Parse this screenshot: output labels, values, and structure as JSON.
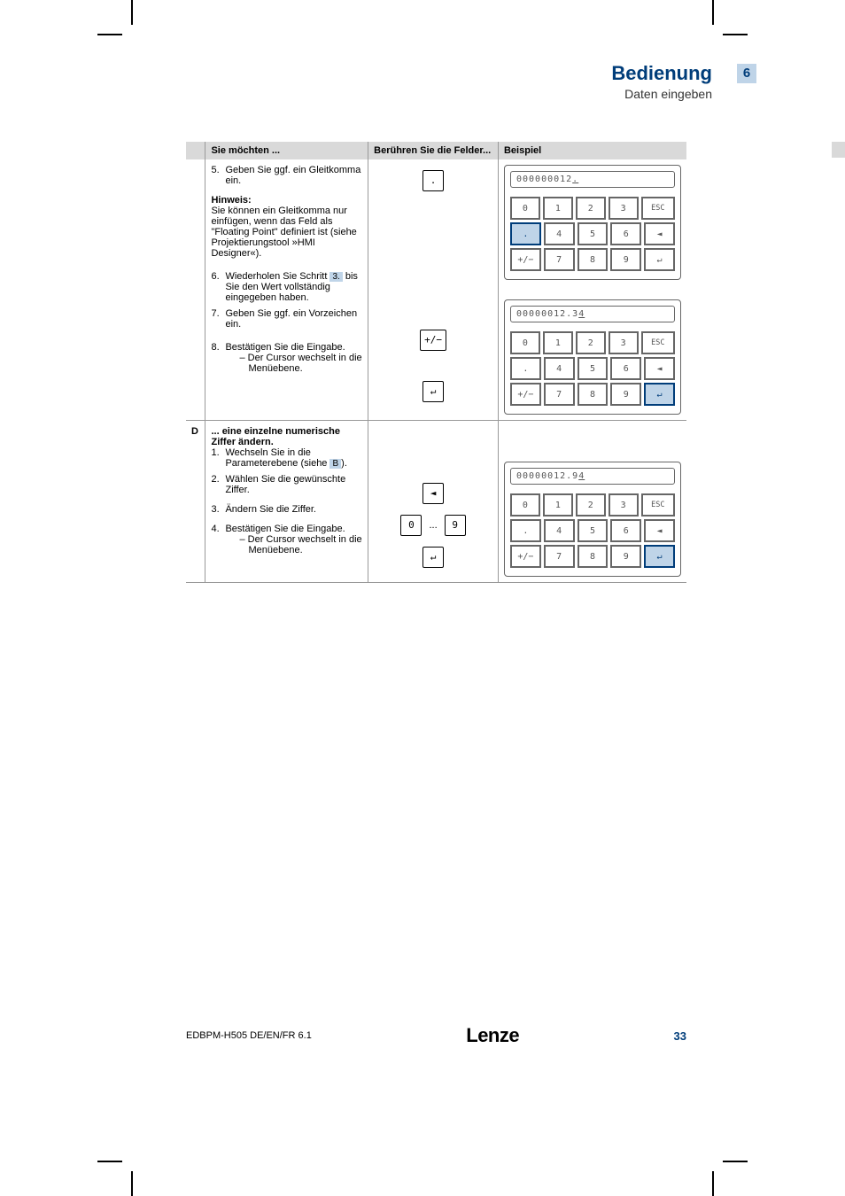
{
  "header": {
    "title": "Bedienung",
    "subtitle": "Daten eingeben",
    "chapter": "6"
  },
  "table": {
    "headers": {
      "want": "Sie möchten ...",
      "touch": "Berühren Sie die Felder...",
      "example": "Beispiel"
    },
    "rowC": {
      "step5": {
        "num": "5.",
        "text": "Geben Sie ggf. ein Gleitkomma ein."
      },
      "hint": {
        "title": "Hinweis:",
        "text": "Sie können ein Gleitkomma nur einfügen, wenn das Feld als \"Floating Point\" definiert ist (siehe Projektierungstool »HMI Designer«)."
      },
      "step6": {
        "num": "6.",
        "text_a": "Wiederholen Sie Schritt ",
        "ref": "3.",
        "text_b": " bis Sie den Wert vollständig eingegeben haben."
      },
      "step7": {
        "num": "7.",
        "text": "Geben Sie ggf. ein Vorzeichen ein."
      },
      "step8": {
        "num": "8.",
        "text": "Bestätigen Sie die Eingabe.",
        "sub": "– Der Cursor wechselt in die Menüebene."
      },
      "touch_dot": ".",
      "touch_pm": "+/−",
      "touch_enter": "↵",
      "display1": "000000012.",
      "display2": "00000012.34"
    },
    "rowD": {
      "id": "D",
      "intro": "... eine einzelne numerische Ziffer ändern.",
      "step1": {
        "num": "1.",
        "text_a": "Wechseln Sie in die Parameterebene (siehe ",
        "ref": "B",
        "text_b": ")."
      },
      "step2": {
        "num": "2.",
        "text": "Wählen Sie die gewünschte Ziffer."
      },
      "step3": {
        "num": "3.",
        "text": "Ändern Sie die Ziffer."
      },
      "step4": {
        "num": "4.",
        "text": "Bestätigen Sie die Eingabe.",
        "sub": "– Der Cursor wechselt in die Menüebene."
      },
      "touch_left": "◄",
      "touch_0": "0",
      "touch_dots": "...",
      "touch_9": "9",
      "touch_enter": "↵",
      "display": "00000012.94"
    },
    "keypad": {
      "r1": [
        "0",
        "1",
        "2",
        "3",
        "ESC"
      ],
      "r2": [
        ".",
        "4",
        "5",
        "6",
        "◄"
      ],
      "r3": [
        "+/−",
        "7",
        "8",
        "9",
        "↵"
      ]
    }
  },
  "footer": {
    "doc": "EDBPM-H505   DE/EN/FR   6.1",
    "logo": "Lenze",
    "page": "33"
  }
}
